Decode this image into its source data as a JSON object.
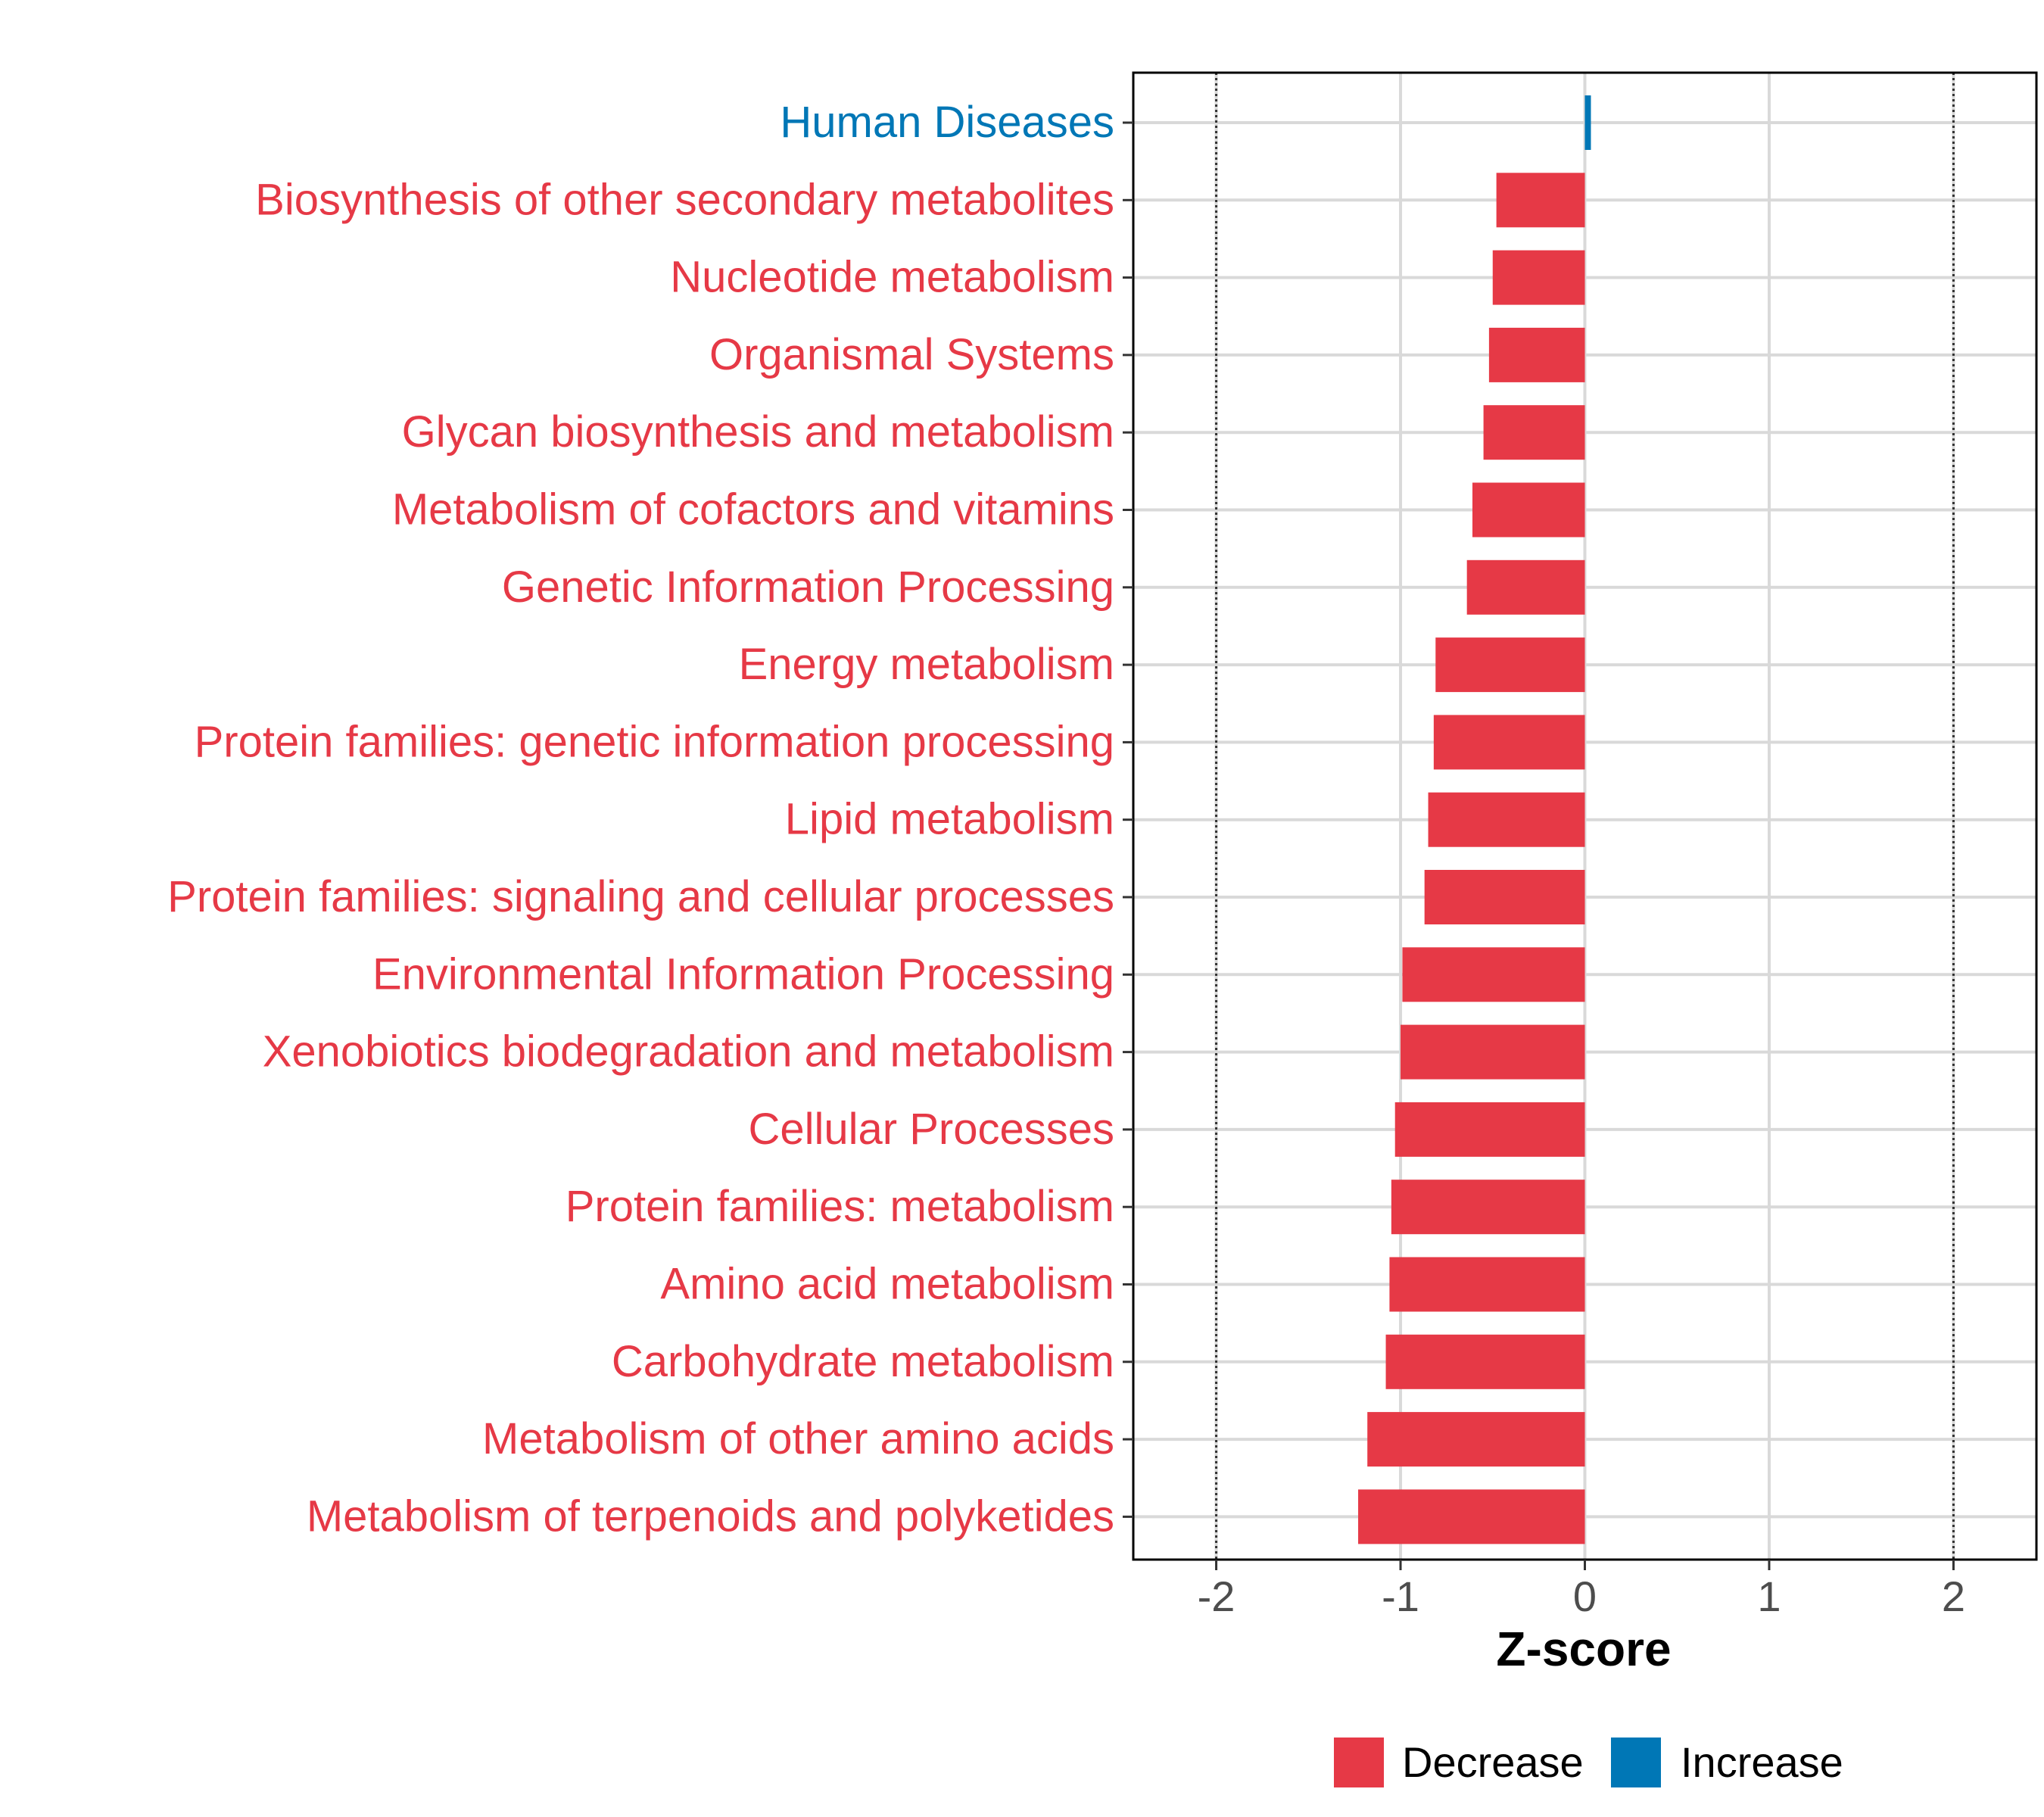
{
  "chart_data": {
    "type": "bar",
    "orientation": "horizontal",
    "categories": [
      "Human Diseases",
      "Biosynthesis of other secondary metabolites",
      "Nucleotide metabolism",
      "Organismal Systems",
      "Glycan biosynthesis and metabolism",
      "Metabolism of cofactors and vitamins",
      "Genetic Information Processing",
      "Energy metabolism",
      "Protein families: genetic information processing",
      "Lipid metabolism",
      "Protein families: signaling and cellular processes",
      "Environmental Information Processing",
      "Xenobiotics biodegradation and metabolism",
      "Cellular Processes",
      "Protein families: metabolism",
      "Amino acid metabolism",
      "Carbohydrate metabolism",
      "Metabolism of other amino acids",
      "Metabolism of terpenoids and polyketides"
    ],
    "values": [
      0.02,
      -0.48,
      -0.5,
      -0.52,
      -0.55,
      -0.61,
      -0.64,
      -0.81,
      -0.82,
      -0.85,
      -0.87,
      -0.99,
      -1.0,
      -1.03,
      -1.05,
      -1.06,
      -1.08,
      -1.18,
      -1.23
    ],
    "direction": [
      "Increase",
      "Decrease",
      "Decrease",
      "Decrease",
      "Decrease",
      "Decrease",
      "Decrease",
      "Decrease",
      "Decrease",
      "Decrease",
      "Decrease",
      "Decrease",
      "Decrease",
      "Decrease",
      "Decrease",
      "Decrease",
      "Decrease",
      "Decrease",
      "Decrease"
    ],
    "xlabel": "Z-score",
    "ylabel": "",
    "xlim": [
      -2.45,
      2.45
    ],
    "xticks": [
      -2,
      -1,
      0,
      1,
      2
    ],
    "xtick_labels": [
      "-2",
      "-1",
      "0",
      "1",
      "2"
    ],
    "reference_lines": [
      -2,
      2
    ],
    "grid": true,
    "legend": {
      "placement": "bottom",
      "items": [
        {
          "label": "Decrease",
          "color": "#e63946"
        },
        {
          "label": "Increase",
          "color": "#0077b6"
        }
      ]
    },
    "colors": {
      "Decrease": "#e63946",
      "Increase": "#0077b6"
    }
  }
}
